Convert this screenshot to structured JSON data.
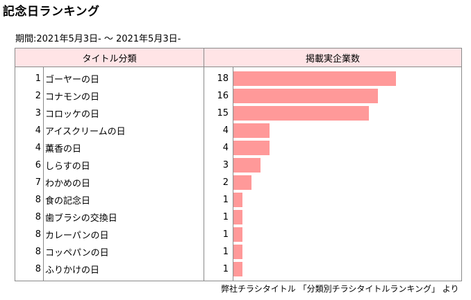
{
  "page": {
    "title": "記念日ランキング",
    "period": "期間:2021年5月3日- ～ 2021年5月3日-",
    "source": "弊社チラシタイトル 「分類別チラシタイトルランキング」 より"
  },
  "chart_data": {
    "type": "bar",
    "orientation": "horizontal",
    "columns": {
      "category": "タイトル分類",
      "value": "掲載実企業数"
    },
    "rows": [
      {
        "rank": "1",
        "title": "ゴーヤーの日",
        "value": 18
      },
      {
        "rank": "2",
        "title": "コナモンの日",
        "value": 16
      },
      {
        "rank": "3",
        "title": "コロッケの日",
        "value": 15
      },
      {
        "rank": "4",
        "title": "アイスクリームの日",
        "value": 4
      },
      {
        "rank": "4",
        "title": "薫香の日",
        "value": 4
      },
      {
        "rank": "6",
        "title": "しらすの日",
        "value": 3
      },
      {
        "rank": "7",
        "title": "わかめの日",
        "value": 2
      },
      {
        "rank": "8",
        "title": "食の記念日",
        "value": 1
      },
      {
        "rank": "8",
        "title": "歯ブラシの交換日",
        "value": 1
      },
      {
        "rank": "8",
        "title": "カレーパンの日",
        "value": 1
      },
      {
        "rank": "8",
        "title": "コッペパンの日",
        "value": 1
      },
      {
        "rank": "8",
        "title": "ふりかけの日",
        "value": 1
      }
    ],
    "bar_color": "#ff9999",
    "header_color": "#ffe4e6"
  }
}
